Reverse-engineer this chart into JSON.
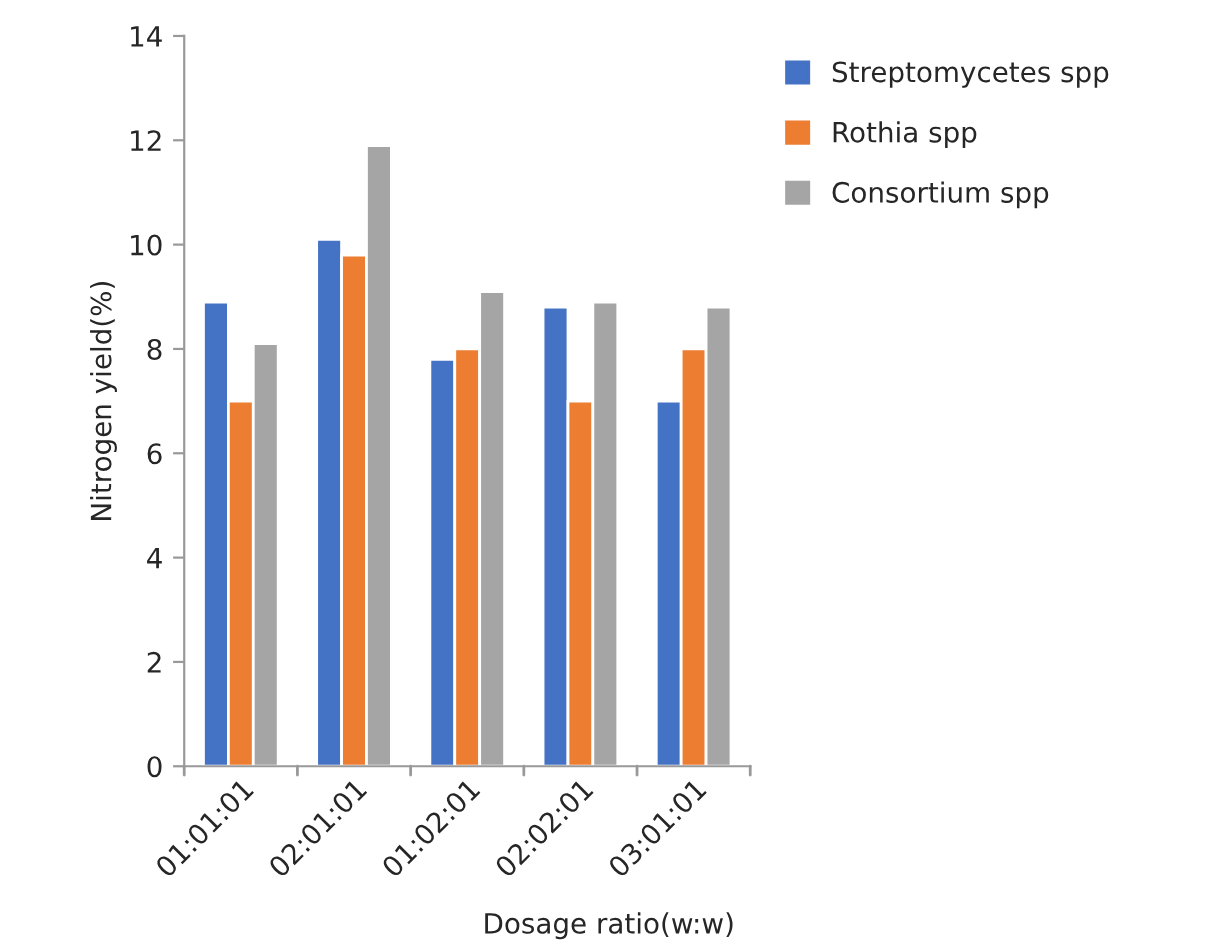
{
  "chart_data": {
    "type": "bar",
    "xlabel": "Dosage ratio(w:w)",
    "ylabel": "Nitrogen yield(%)",
    "categories": [
      "01:01:01",
      "02:01:01",
      "01:02:01",
      "02:02:01",
      "03:01:01"
    ],
    "series": [
      {
        "name": "Streptomycetes spp",
        "color": "#4472c4",
        "values": [
          8.9,
          10.1,
          7.8,
          8.8,
          7.0
        ]
      },
      {
        "name": "Rothia spp",
        "color": "#ed7d31",
        "values": [
          7.0,
          9.8,
          8.0,
          7.0,
          8.0
        ]
      },
      {
        "name": "Consortium spp",
        "color": "#a5a5a5",
        "values": [
          8.1,
          11.9,
          9.1,
          8.9,
          8.8
        ]
      }
    ],
    "ylim": [
      0,
      14
    ],
    "yticks": [
      0,
      2,
      4,
      6,
      8,
      10,
      12,
      14
    ],
    "grid": false,
    "legend": "top right"
  }
}
